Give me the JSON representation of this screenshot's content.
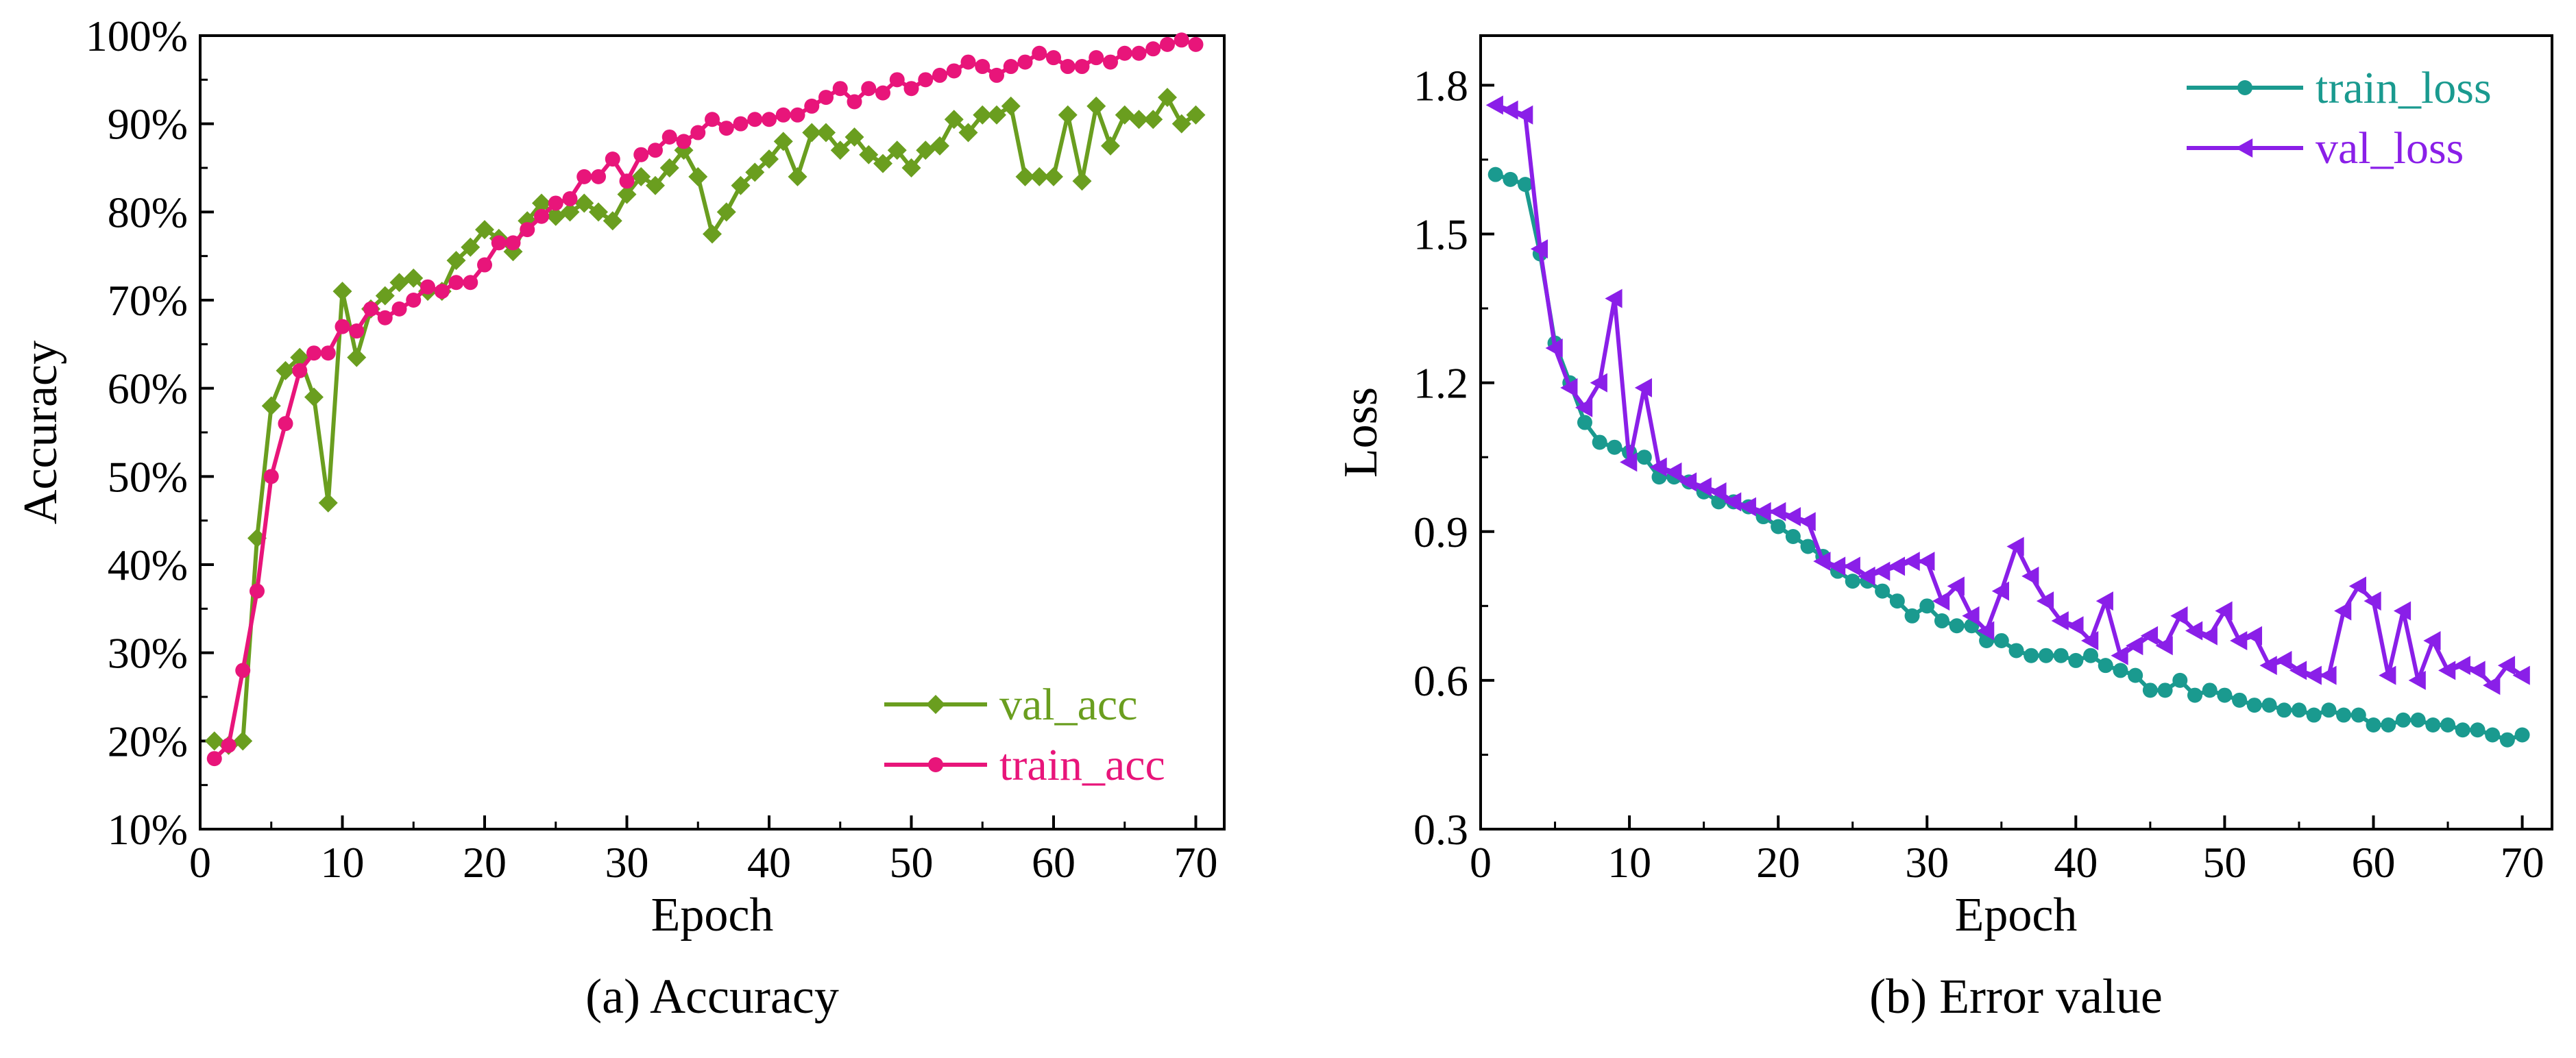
{
  "chart_data": [
    {
      "type": "line",
      "panel": "a",
      "caption_letter": "(a)",
      "caption_text": "Accuracy",
      "xlabel": "Epoch",
      "ylabel": "Accuracy",
      "xlim": [
        0,
        72
      ],
      "ylim": [
        10,
        100
      ],
      "xticks": [
        0,
        10,
        20,
        30,
        40,
        50,
        60,
        70
      ],
      "yticks": [
        10,
        20,
        30,
        40,
        50,
        60,
        70,
        80,
        90,
        100
      ],
      "ytick_suffix": "%",
      "legend_position": "bottom-right",
      "series": [
        {
          "name": "val_acc",
          "color": "#6a9e1f",
          "marker": "diamond",
          "x": [
            1,
            2,
            3,
            4,
            5,
            6,
            7,
            8,
            9,
            10,
            11,
            12,
            13,
            14,
            15,
            16,
            17,
            18,
            19,
            20,
            21,
            22,
            23,
            24,
            25,
            26,
            27,
            28,
            29,
            30,
            31,
            32,
            33,
            34,
            35,
            36,
            37,
            38,
            39,
            40,
            41,
            42,
            43,
            44,
            45,
            46,
            47,
            48,
            49,
            50,
            51,
            52,
            53,
            54,
            55,
            56,
            57,
            58,
            59,
            60,
            61,
            62,
            63,
            64,
            65,
            66,
            67,
            68,
            69,
            70
          ],
          "values": [
            20,
            19.5,
            20,
            43,
            58,
            62,
            63.5,
            59,
            47,
            71,
            63.5,
            69,
            70.5,
            72,
            72.5,
            71,
            71,
            74.5,
            76,
            78,
            77,
            75.5,
            79,
            81,
            79.5,
            80,
            81,
            80,
            79,
            82,
            84,
            83,
            85,
            87,
            84,
            77.5,
            80,
            83,
            84.5,
            86,
            88,
            84,
            89,
            89,
            87,
            88.5,
            86.5,
            85.5,
            87,
            85,
            87,
            87.5,
            90.5,
            89,
            91,
            91,
            92,
            84,
            84,
            84,
            91,
            83.5,
            92,
            87.5,
            91,
            90.5,
            90.5,
            93,
            90,
            91
          ]
        },
        {
          "name": "train_acc",
          "color": "#e8157a",
          "marker": "circle",
          "x": [
            1,
            2,
            3,
            4,
            5,
            6,
            7,
            8,
            9,
            10,
            11,
            12,
            13,
            14,
            15,
            16,
            17,
            18,
            19,
            20,
            21,
            22,
            23,
            24,
            25,
            26,
            27,
            28,
            29,
            30,
            31,
            32,
            33,
            34,
            35,
            36,
            37,
            38,
            39,
            40,
            41,
            42,
            43,
            44,
            45,
            46,
            47,
            48,
            49,
            50,
            51,
            52,
            53,
            54,
            55,
            56,
            57,
            58,
            59,
            60,
            61,
            62,
            63,
            64,
            65,
            66,
            67,
            68,
            69,
            70
          ],
          "values": [
            18,
            19.5,
            28,
            37,
            50,
            56,
            62,
            64,
            64,
            67,
            66.5,
            69,
            68,
            69,
            70,
            71.5,
            71,
            72,
            72,
            74,
            76.5,
            76.5,
            78,
            79.5,
            81,
            81.5,
            84,
            84,
            86,
            83.5,
            86.5,
            87,
            88.5,
            88,
            89,
            90.5,
            89.5,
            90,
            90.5,
            90.5,
            91,
            91,
            92,
            93,
            94,
            92.5,
            94,
            93.5,
            95,
            94,
            95,
            95.5,
            96,
            97,
            96.5,
            95.5,
            96.5,
            97,
            98,
            97.5,
            96.5,
            96.5,
            97.5,
            97,
            98,
            98,
            98.5,
            99,
            99.5,
            99
          ]
        }
      ]
    },
    {
      "type": "line",
      "panel": "b",
      "caption_letter": "(b)",
      "caption_text": "Error value",
      "xlabel": "Epoch",
      "ylabel": "Loss",
      "xlim": [
        0,
        72
      ],
      "ylim": [
        0.3,
        1.9
      ],
      "xticks": [
        0,
        10,
        20,
        30,
        40,
        50,
        60,
        70
      ],
      "yticks": [
        0.3,
        0.6,
        0.9,
        1.2,
        1.5,
        1.8
      ],
      "legend_position": "top-right",
      "series": [
        {
          "name": "train_loss",
          "color": "#1a9a8f",
          "marker": "circle",
          "x": [
            1,
            2,
            3,
            4,
            5,
            6,
            7,
            8,
            9,
            10,
            11,
            12,
            13,
            14,
            15,
            16,
            17,
            18,
            19,
            20,
            21,
            22,
            23,
            24,
            25,
            26,
            27,
            28,
            29,
            30,
            31,
            32,
            33,
            34,
            35,
            36,
            37,
            38,
            39,
            40,
            41,
            42,
            43,
            44,
            45,
            46,
            47,
            48,
            49,
            50,
            51,
            52,
            53,
            54,
            55,
            56,
            57,
            58,
            59,
            60,
            61,
            62,
            63,
            64,
            65,
            66,
            67,
            68,
            69,
            70
          ],
          "values": [
            1.62,
            1.61,
            1.6,
            1.46,
            1.28,
            1.2,
            1.12,
            1.08,
            1.07,
            1.06,
            1.05,
            1.01,
            1.01,
            1.0,
            0.98,
            0.96,
            0.96,
            0.95,
            0.93,
            0.91,
            0.89,
            0.87,
            0.85,
            0.82,
            0.8,
            0.8,
            0.78,
            0.76,
            0.73,
            0.75,
            0.72,
            0.71,
            0.71,
            0.68,
            0.68,
            0.66,
            0.65,
            0.65,
            0.65,
            0.64,
            0.65,
            0.63,
            0.62,
            0.61,
            0.58,
            0.58,
            0.6,
            0.57,
            0.58,
            0.57,
            0.56,
            0.55,
            0.55,
            0.54,
            0.54,
            0.53,
            0.54,
            0.53,
            0.53,
            0.51,
            0.51,
            0.52,
            0.52,
            0.51,
            0.51,
            0.5,
            0.5,
            0.49,
            0.48,
            0.49
          ]
        },
        {
          "name": "val_loss",
          "color": "#8a1fe8",
          "marker": "triangle-left",
          "x": [
            1,
            2,
            3,
            4,
            5,
            6,
            7,
            8,
            9,
            10,
            11,
            12,
            13,
            14,
            15,
            16,
            17,
            18,
            19,
            20,
            21,
            22,
            23,
            24,
            25,
            26,
            27,
            28,
            29,
            30,
            31,
            32,
            33,
            34,
            35,
            36,
            37,
            38,
            39,
            40,
            41,
            42,
            43,
            44,
            45,
            46,
            47,
            48,
            49,
            50,
            51,
            52,
            53,
            54,
            55,
            56,
            57,
            58,
            59,
            60,
            61,
            62,
            63,
            64,
            65,
            66,
            67,
            68,
            69,
            70
          ],
          "values": [
            1.76,
            1.75,
            1.74,
            1.47,
            1.27,
            1.19,
            1.15,
            1.2,
            1.37,
            1.04,
            1.19,
            1.03,
            1.02,
            1.0,
            0.99,
            0.98,
            0.96,
            0.95,
            0.94,
            0.94,
            0.93,
            0.92,
            0.84,
            0.83,
            0.83,
            0.81,
            0.82,
            0.83,
            0.84,
            0.84,
            0.76,
            0.79,
            0.73,
            0.7,
            0.78,
            0.87,
            0.81,
            0.76,
            0.72,
            0.71,
            0.68,
            0.76,
            0.65,
            0.67,
            0.69,
            0.67,
            0.73,
            0.7,
            0.69,
            0.74,
            0.68,
            0.69,
            0.63,
            0.64,
            0.62,
            0.61,
            0.61,
            0.74,
            0.79,
            0.76,
            0.61,
            0.74,
            0.6,
            0.68,
            0.62,
            0.63,
            0.62,
            0.59,
            0.63,
            0.61
          ]
        }
      ]
    }
  ]
}
